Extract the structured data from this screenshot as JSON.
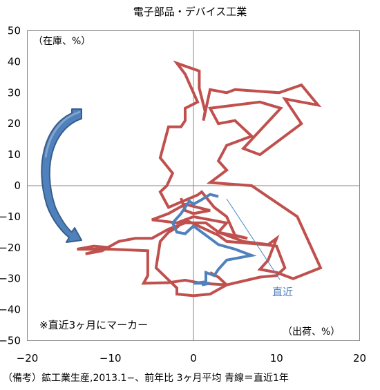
{
  "chart_data": {
    "type": "line",
    "title": "電子部品・デバイス工業",
    "xlabel": "（出荷、%）",
    "ylabel": "（在庫、%）",
    "xlim": [
      -20,
      20
    ],
    "ylim": [
      -50,
      50
    ],
    "x_ticks": [
      "−20",
      "−10",
      "0",
      "10",
      "20"
    ],
    "y_ticks": [
      "50",
      "40",
      "30",
      "20",
      "10",
      "0",
      "−10",
      "−20",
      "−30",
      "−40",
      "−50"
    ],
    "grid": false,
    "series": [
      {
        "color": "#C0504D",
        "points": [
          [
            -1.5,
            -4
          ],
          [
            -1,
            -8
          ],
          [
            0,
            -9
          ],
          [
            2,
            -8
          ],
          [
            -1,
            -6
          ],
          [
            -3,
            -9
          ],
          [
            -5,
            -11
          ],
          [
            -2,
            -12
          ],
          [
            0,
            -10
          ],
          [
            4,
            -12
          ],
          [
            3,
            -15
          ],
          [
            6,
            -18
          ],
          [
            9,
            -19
          ],
          [
            10,
            -17
          ],
          [
            9,
            -24
          ],
          [
            8,
            -27
          ],
          [
            10,
            -28
          ],
          [
            12,
            -30
          ],
          [
            15.3,
            -26.5
          ],
          [
            12.5,
            -10
          ],
          [
            7,
            0
          ],
          [
            2,
            1
          ],
          [
            4,
            5
          ],
          [
            3,
            8
          ],
          [
            4,
            13
          ],
          [
            7,
            16
          ],
          [
            5,
            21
          ],
          [
            3,
            20
          ],
          [
            2,
            25
          ],
          [
            8,
            27
          ],
          [
            10.5,
            25
          ],
          [
            6,
            12
          ],
          [
            8,
            10
          ],
          [
            13,
            20
          ],
          [
            11,
            28
          ],
          [
            15,
            26
          ],
          [
            13,
            32.5
          ],
          [
            10.3,
            30
          ],
          [
            5,
            31
          ],
          [
            4,
            30
          ],
          [
            2,
            31
          ],
          [
            1.2,
            21
          ],
          [
            1.4,
            24
          ],
          [
            0.7,
            31.5
          ],
          [
            0.7,
            37
          ],
          [
            -2,
            39.5
          ],
          [
            -1,
            36
          ],
          [
            0.5,
            27
          ],
          [
            -1,
            25
          ],
          [
            -1,
            21
          ],
          [
            -1.5,
            19
          ],
          [
            -3,
            19
          ],
          [
            -4,
            9
          ],
          [
            -2.5,
            4
          ],
          [
            -3.2,
            0
          ],
          [
            -4,
            -2
          ],
          [
            -3,
            -7
          ],
          [
            0.5,
            -3
          ],
          [
            1,
            -2
          ],
          [
            2.5,
            -7
          ],
          [
            4,
            -10
          ],
          [
            5,
            -16
          ],
          [
            6.5,
            -17
          ],
          [
            3,
            -15
          ],
          [
            1.5,
            -12
          ],
          [
            -1,
            -12
          ],
          [
            -3,
            -14
          ],
          [
            -5,
            -17
          ],
          [
            -7,
            -17
          ],
          [
            -9,
            -18
          ],
          [
            -11,
            -21
          ],
          [
            -13,
            -22
          ],
          [
            -10,
            -20
          ],
          [
            -12,
            -19.5
          ],
          [
            -14,
            -20.5
          ],
          [
            -10,
            -20.5
          ],
          [
            -5.5,
            -21
          ],
          [
            -5.5,
            -29
          ],
          [
            -6,
            -31.5
          ],
          [
            -3,
            -31.3
          ],
          [
            -1,
            -30.5
          ],
          [
            0,
            -31
          ],
          [
            1,
            -31.5
          ],
          [
            4,
            -32
          ],
          [
            8,
            -29.5
          ],
          [
            10,
            -29
          ],
          [
            11,
            -26.5
          ],
          [
            10,
            -19.5
          ],
          [
            8.5,
            -19
          ],
          [
            4,
            -18
          ],
          [
            3,
            -16
          ],
          [
            -1,
            -11
          ],
          [
            -2,
            -13.5
          ],
          [
            -3,
            -15
          ],
          [
            -4,
            -18
          ],
          [
            -4.5,
            -26.5
          ],
          [
            -2,
            -33
          ],
          [
            -2,
            -35
          ],
          [
            0,
            -35.5
          ],
          [
            2,
            -35
          ],
          [
            4,
            -32
          ],
          [
            3,
            -29.5
          ],
          [
            2,
            -28
          ]
        ]
      },
      {
        "color": "#4F81BD",
        "points": [
          [
            3,
            -3.5
          ],
          [
            2,
            -2.8
          ],
          [
            1,
            -4.5
          ],
          [
            0,
            -6
          ],
          [
            -0.5,
            -5
          ],
          [
            -1.5,
            -9
          ],
          [
            -2.5,
            -12
          ],
          [
            -2,
            -15
          ],
          [
            -1,
            -15.5
          ],
          [
            0,
            -13
          ],
          [
            1,
            -15
          ],
          [
            2,
            -17
          ],
          [
            3,
            -19
          ],
          [
            5,
            -20.5
          ],
          [
            7,
            -22.5
          ],
          [
            4,
            -24
          ],
          [
            3,
            -27
          ],
          [
            2.5,
            -29
          ],
          [
            1.5,
            -28
          ],
          [
            1.5,
            -31
          ],
          [
            0,
            -31.5
          ],
          [
            2,
            -31.5
          ],
          [
            1,
            -32
          ]
        ]
      }
    ],
    "annotations": {
      "latest_label": "直近",
      "marker_note": "※直近3ヶ月にマーカー"
    }
  },
  "footnote": "（備考）鉱工業生産,2013.1−、前年比 3ヶ月平均 青線＝直近1年"
}
